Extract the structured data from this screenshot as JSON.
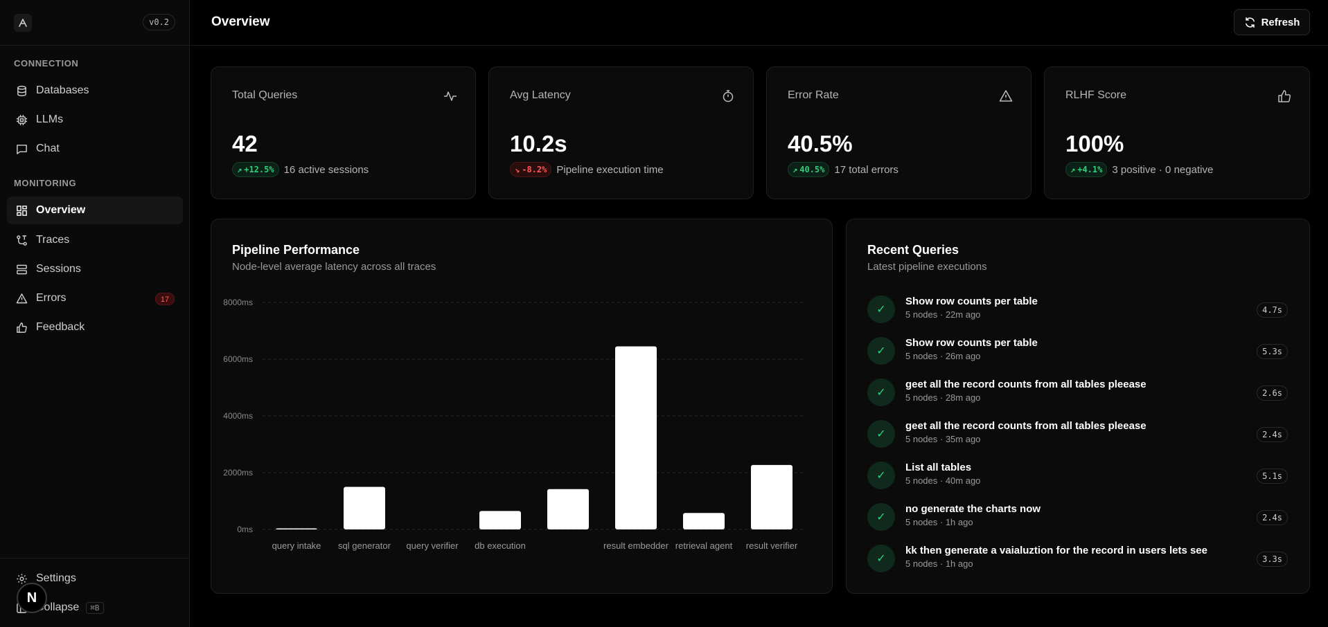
{
  "app": {
    "version": "v0.2"
  },
  "sidebar": {
    "sections": [
      {
        "label": "CONNECTION",
        "items": [
          {
            "label": "Databases",
            "icon": "database-icon"
          },
          {
            "label": "LLMs",
            "icon": "cpu-icon"
          },
          {
            "label": "Chat",
            "icon": "chat-icon"
          }
        ]
      },
      {
        "label": "MONITORING",
        "items": [
          {
            "label": "Overview",
            "icon": "dashboard-icon",
            "active": true
          },
          {
            "label": "Traces",
            "icon": "traces-icon"
          },
          {
            "label": "Sessions",
            "icon": "sessions-icon"
          },
          {
            "label": "Errors",
            "icon": "warning-icon",
            "badge": "17"
          },
          {
            "label": "Feedback",
            "icon": "thumbs-up-icon"
          }
        ]
      }
    ],
    "settings_label": "Settings",
    "collapse_label": "Collapse",
    "collapse_shortcut": "⌘B",
    "n_badge": "N"
  },
  "header": {
    "title": "Overview",
    "refresh_label": "Refresh"
  },
  "stats": [
    {
      "title": "Total Queries",
      "icon": "activity-icon",
      "value": "42",
      "delta": "+12.5%",
      "delta_dir": "up",
      "foot": "16 active sessions"
    },
    {
      "title": "Avg Latency",
      "icon": "timer-icon",
      "value": "10.2s",
      "delta": "-8.2%",
      "delta_dir": "down",
      "foot": "Pipeline execution time"
    },
    {
      "title": "Error Rate",
      "icon": "warning-icon",
      "value": "40.5%",
      "delta": "40.5%",
      "delta_dir": "up",
      "foot": "17 total errors"
    },
    {
      "title": "RLHF Score",
      "icon": "thumbs-up-icon",
      "value": "100%",
      "delta": "+4.1%",
      "delta_dir": "up",
      "foot": "3 positive · 0 negative"
    }
  ],
  "pipeline": {
    "title": "Pipeline Performance",
    "subtitle": "Node-level average latency across all traces"
  },
  "chart_data": {
    "type": "bar",
    "categories": [
      "query intake",
      "sql generator",
      "query verifier",
      "db execution",
      "",
      "result embedder",
      "retrieval agent",
      "result verifier"
    ],
    "values": [
      20,
      1500,
      0,
      650,
      1420,
      6450,
      580,
      2270
    ],
    "y_ticks": [
      "0ms",
      "2000ms",
      "4000ms",
      "6000ms",
      "8000ms"
    ],
    "ylim": [
      0,
      8000
    ],
    "grid": "dashed horizontal",
    "bar_color": "#ffffff"
  },
  "recent": {
    "title": "Recent Queries",
    "subtitle": "Latest pipeline executions",
    "items": [
      {
        "title": "Show row counts per table",
        "meta": "5 nodes · 22m ago",
        "time": "4.7s"
      },
      {
        "title": "Show row counts per table",
        "meta": "5 nodes · 26m ago",
        "time": "5.3s"
      },
      {
        "title": "geet all the record counts from all tables pleease",
        "meta": "5 nodes · 28m ago",
        "time": "2.6s"
      },
      {
        "title": "geet all the record counts from all tables pleease",
        "meta": "5 nodes · 35m ago",
        "time": "2.4s"
      },
      {
        "title": "List all tables",
        "meta": "5 nodes · 40m ago",
        "time": "5.1s"
      },
      {
        "title": "no generate the charts now",
        "meta": "5 nodes · 1h ago",
        "time": "2.4s"
      },
      {
        "title": "kk then generate a vaialuztion for the record in users lets see",
        "meta": "5 nodes · 1h ago",
        "time": "3.3s"
      }
    ]
  }
}
